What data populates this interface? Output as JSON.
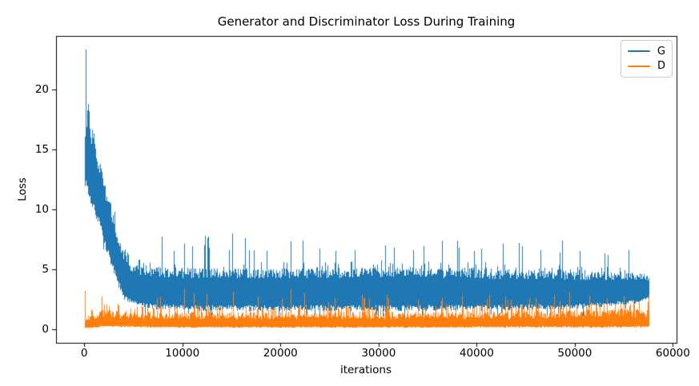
{
  "chart_data": {
    "type": "line",
    "title": "Generator and Discriminator Loss During Training",
    "xlabel": "iterations",
    "ylabel": "Loss",
    "xlim": [
      -2875,
      60375
    ],
    "ylim": [
      -1.165,
      24.465
    ],
    "x_end": 57500,
    "grid": false,
    "xtick_values": [
      0,
      10000,
      20000,
      30000,
      40000,
      50000,
      60000
    ],
    "xtick_labels": [
      "0",
      "10000",
      "20000",
      "30000",
      "40000",
      "50000",
      "60000"
    ],
    "ytick_values": [
      0,
      5,
      10,
      15,
      20
    ],
    "ytick_labels": [
      "0",
      "5",
      "10",
      "15",
      "20"
    ],
    "legend": {
      "position": "upper right",
      "entries": [
        {
          "label": "G",
          "color": "#1f77b4"
        },
        {
          "label": "D",
          "color": "#ff7f0e"
        }
      ]
    },
    "colors": {
      "background": "#ffffff",
      "spine": "#000000",
      "text": "#000000"
    },
    "series": [
      {
        "name": "G",
        "color": "#1f77b4",
        "peak_value": 23.3,
        "envelope": [
          [
            0,
            11.0,
            17.5
          ],
          [
            150,
            12.0,
            19.0
          ],
          [
            500,
            10.8,
            18.3
          ],
          [
            1000,
            9.5,
            16.5
          ],
          [
            1600,
            8.3,
            14.8
          ],
          [
            2200,
            6.5,
            12.8
          ],
          [
            2800,
            5.0,
            10.8
          ],
          [
            3400,
            3.6,
            8.8
          ],
          [
            4000,
            2.5,
            7.0
          ],
          [
            4800,
            1.9,
            6.0
          ],
          [
            6000,
            1.7,
            5.7
          ],
          [
            10000,
            1.5,
            5.6
          ],
          [
            20000,
            1.5,
            5.6
          ],
          [
            30000,
            1.5,
            5.7
          ],
          [
            40000,
            1.5,
            5.6
          ],
          [
            48000,
            1.6,
            5.4
          ],
          [
            53000,
            1.8,
            5.2
          ],
          [
            56500,
            2.1,
            5.1
          ],
          [
            57500,
            2.5,
            4.8
          ]
        ],
        "spikes": [
          [
            120,
            23.3
          ],
          [
            400,
            18.8
          ],
          [
            10200,
            7.1
          ],
          [
            11000,
            6.9
          ],
          [
            12700,
            6.8
          ],
          [
            15100,
            8.0
          ],
          [
            16800,
            6.6
          ],
          [
            18600,
            6.5
          ],
          [
            21000,
            7.3
          ],
          [
            22300,
            7.35
          ],
          [
            24000,
            6.7
          ],
          [
            25600,
            6.5
          ],
          [
            27600,
            6.6
          ],
          [
            30700,
            7.0
          ],
          [
            31600,
            6.8
          ],
          [
            33500,
            6.6
          ],
          [
            36500,
            7.4
          ],
          [
            38200,
            6.8
          ],
          [
            40500,
            6.7
          ],
          [
            42700,
            7.1
          ],
          [
            44600,
            6.9
          ],
          [
            46500,
            6.6
          ],
          [
            48500,
            6.4
          ],
          [
            50500,
            6.5
          ],
          [
            53000,
            6.3
          ],
          [
            55500,
            6.6
          ]
        ]
      },
      {
        "name": "D",
        "color": "#ff7f0e",
        "peak_value": 3.35,
        "envelope": [
          [
            0,
            0.03,
            1.3
          ],
          [
            600,
            0.06,
            1.7
          ],
          [
            1500,
            0.12,
            2.2
          ],
          [
            2500,
            0.18,
            2.3
          ],
          [
            4000,
            0.12,
            2.1
          ],
          [
            8000,
            0.08,
            2.0
          ],
          [
            20000,
            0.08,
            2.0
          ],
          [
            35000,
            0.08,
            2.05
          ],
          [
            45000,
            0.1,
            2.1
          ],
          [
            52000,
            0.1,
            2.3
          ],
          [
            57500,
            0.12,
            2.4
          ]
        ],
        "spikes": [
          [
            50,
            3.2
          ],
          [
            10200,
            3.35
          ],
          [
            11200,
            3.0
          ],
          [
            12500,
            2.9
          ],
          [
            15200,
            3.1
          ],
          [
            17700,
            2.7
          ],
          [
            21000,
            3.3
          ],
          [
            22400,
            2.95
          ],
          [
            25500,
            2.6
          ],
          [
            28500,
            2.5
          ],
          [
            31000,
            2.6
          ],
          [
            34000,
            2.45
          ],
          [
            36500,
            2.6
          ],
          [
            38500,
            2.8
          ],
          [
            41000,
            2.5
          ],
          [
            43500,
            2.45
          ],
          [
            46000,
            2.55
          ],
          [
            48500,
            2.4
          ],
          [
            51500,
            2.75
          ],
          [
            53300,
            2.55
          ],
          [
            56000,
            2.45
          ]
        ]
      }
    ]
  }
}
